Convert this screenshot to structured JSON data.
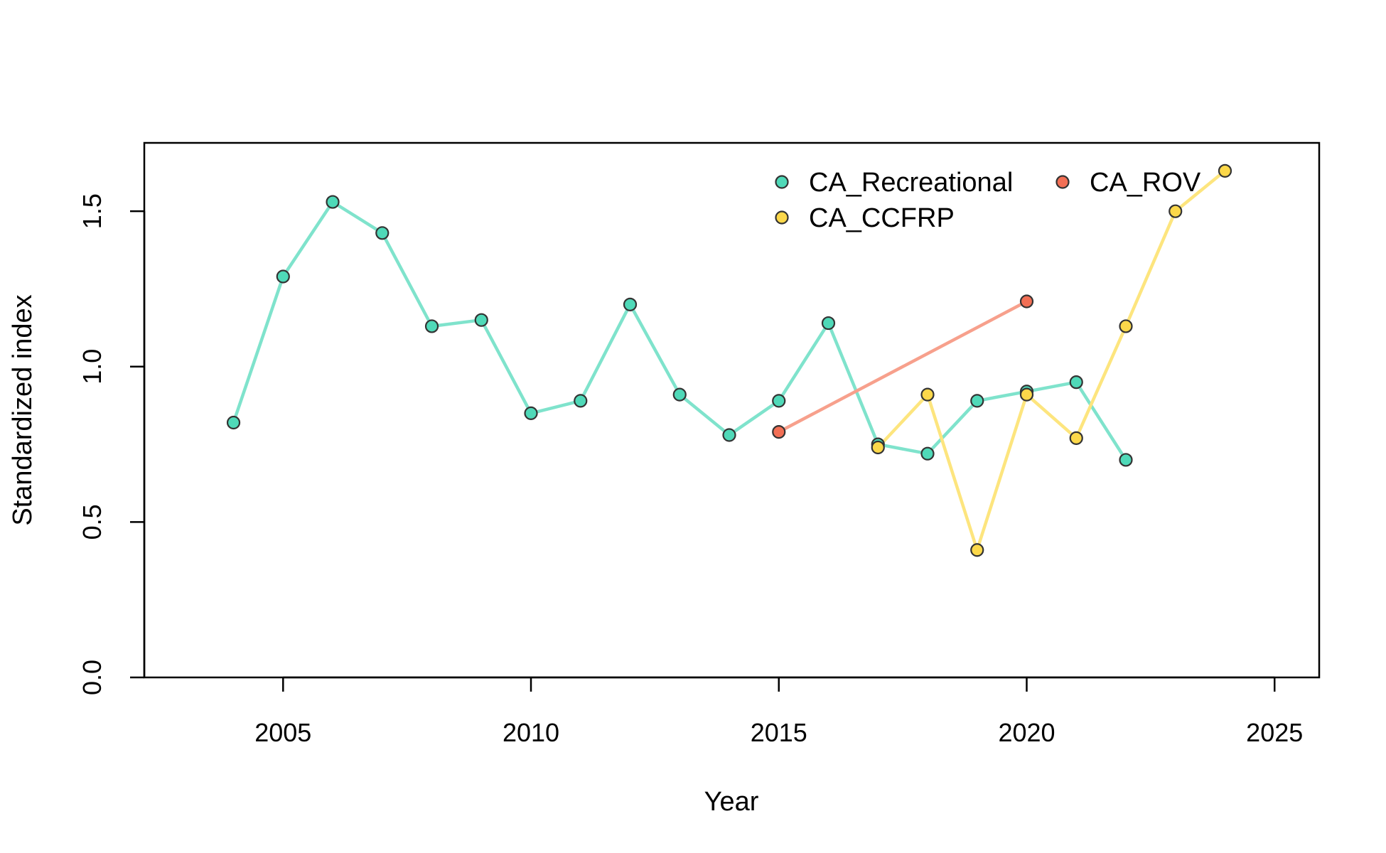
{
  "chart_data": {
    "type": "line",
    "title": "",
    "xlabel": "Year",
    "ylabel": "Standardized index",
    "xlim": [
      2002.2,
      2025.9
    ],
    "ylim": [
      0,
      1.72
    ],
    "x_ticks": [
      2005,
      2010,
      2015,
      2020,
      2025
    ],
    "y_ticks": [
      0.0,
      0.5,
      1.0,
      1.5
    ],
    "x_tick_labels": [
      "2005",
      "2010",
      "2015",
      "2020",
      "2025"
    ],
    "y_tick_labels": [
      "0.0",
      "0.5",
      "1.0",
      "1.5"
    ],
    "grid": false,
    "legend_position": "top-right",
    "series": [
      {
        "name": "CA_Recreational",
        "color": "#7fe3cc",
        "marker_color": "#4fd9b8",
        "x": [
          2004,
          2005,
          2006,
          2007,
          2008,
          2009,
          2010,
          2011,
          2012,
          2013,
          2014,
          2015,
          2016,
          2017,
          2018,
          2019,
          2020,
          2021,
          2022
        ],
        "y": [
          0.82,
          1.29,
          1.53,
          1.43,
          1.13,
          1.15,
          0.85,
          0.89,
          1.2,
          0.91,
          0.78,
          0.89,
          1.14,
          0.75,
          0.72,
          0.89,
          0.92,
          0.95,
          0.7
        ]
      },
      {
        "name": "CA_ROV",
        "color": "#f7a08c",
        "marker_color": "#f26f55",
        "x": [
          2015,
          2020
        ],
        "y": [
          0.79,
          1.21
        ]
      },
      {
        "name": "CA_CCFRP",
        "color": "#fde57e",
        "marker_color": "#fcd84a",
        "x": [
          2017,
          2018,
          2019,
          2020,
          2021,
          2022,
          2023,
          2024
        ],
        "y": [
          0.74,
          0.91,
          0.41,
          0.91,
          0.77,
          1.13,
          1.5,
          1.63
        ]
      }
    ]
  }
}
